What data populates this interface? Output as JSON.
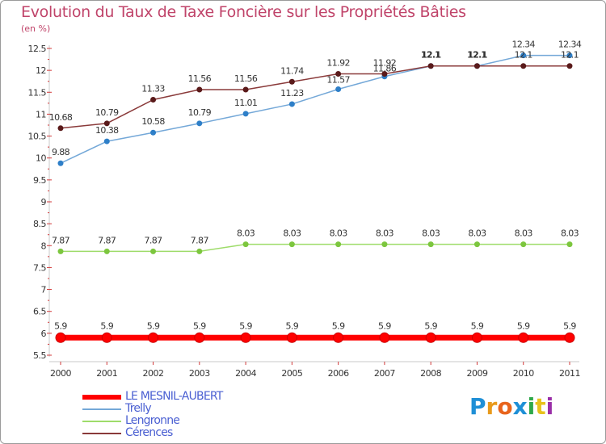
{
  "title": "Evolution du Taux de Taxe Foncière sur les Propriétés Bâties",
  "unit_label": "(en %)",
  "brand": {
    "letters": [
      "P",
      "r",
      "o",
      "x",
      "i",
      "t",
      "i"
    ],
    "colors": [
      "#1e8fd6",
      "#e89a1c",
      "#e8641c",
      "#1e8fd6",
      "#2ea84a",
      "#e8c21c",
      "#9a2ea8"
    ]
  },
  "chart_data": {
    "type": "line",
    "title": "Evolution du Taux de Taxe Foncière sur les Propriétés Bâties",
    "ylabel": "(en %)",
    "xlabel": "",
    "ylim": [
      5.5,
      12.5
    ],
    "yticks": [
      "5.5",
      "6",
      "6.5",
      "7",
      "7.5",
      "8",
      "8.5",
      "9",
      "9.5",
      "10",
      "10.5",
      "11",
      "11.5",
      "12",
      "12.5"
    ],
    "yticks_values": [
      5.5,
      6,
      6.5,
      7,
      7.5,
      8,
      8.5,
      9,
      9.5,
      10,
      10.5,
      11,
      11.5,
      12,
      12.5
    ],
    "categories": [
      "2000",
      "2001",
      "2002",
      "2003",
      "2004",
      "2005",
      "2006",
      "2007",
      "2008",
      "2009",
      "2010",
      "2011"
    ],
    "series": [
      {
        "name": "LE MESNIL-AUBERT",
        "color": "#ff0000",
        "width": 7,
        "marker": 6,
        "values": [
          5.9,
          5.9,
          5.9,
          5.9,
          5.9,
          5.9,
          5.9,
          5.9,
          5.9,
          5.9,
          5.9,
          5.9
        ],
        "labels": [
          "5.9",
          "5.9",
          "5.9",
          "5.9",
          "5.9",
          "5.9",
          "5.9",
          "5.9",
          "5.9",
          "5.9",
          "5.9",
          "5.9"
        ]
      },
      {
        "name": "Trelly",
        "color": "#74a8d8",
        "marker_color": "#2e7fc8",
        "width": 1.5,
        "marker": 3.5,
        "values": [
          9.88,
          10.38,
          10.58,
          10.79,
          11.01,
          11.23,
          11.57,
          11.86,
          12.1,
          12.1,
          12.34,
          12.34
        ],
        "labels": [
          "9.88",
          "10.38",
          "10.58",
          "10.79",
          "11.01",
          "11.23",
          "11.57",
          "11.86",
          "12.1",
          "12.1",
          "12.34",
          "12.34"
        ]
      },
      {
        "name": "Lengronne",
        "color": "#9edc6a",
        "marker_color": "#7cc63e",
        "width": 1.5,
        "marker": 3.5,
        "values": [
          7.87,
          7.87,
          7.87,
          7.87,
          8.03,
          8.03,
          8.03,
          8.03,
          8.03,
          8.03,
          8.03,
          8.03
        ],
        "labels": [
          "7.87",
          "7.87",
          "7.87",
          "7.87",
          "8.03",
          "8.03",
          "8.03",
          "8.03",
          "8.03",
          "8.03",
          "8.03",
          "8.03"
        ]
      },
      {
        "name": "Cérences",
        "color": "#8a3a3a",
        "marker_color": "#5a1a1a",
        "width": 1.5,
        "marker": 3.5,
        "values": [
          10.68,
          10.79,
          11.33,
          11.56,
          11.56,
          11.74,
          11.92,
          11.92,
          12.1,
          12.1,
          12.1,
          12.1
        ],
        "labels": [
          "10.68",
          "10.79",
          "11.33",
          "11.56",
          "11.56",
          "11.74",
          "11.92",
          "11.92",
          "12.1",
          "12.1",
          "12.1",
          "12.1"
        ]
      }
    ],
    "legend_position": "bottom-left",
    "grid": false
  }
}
